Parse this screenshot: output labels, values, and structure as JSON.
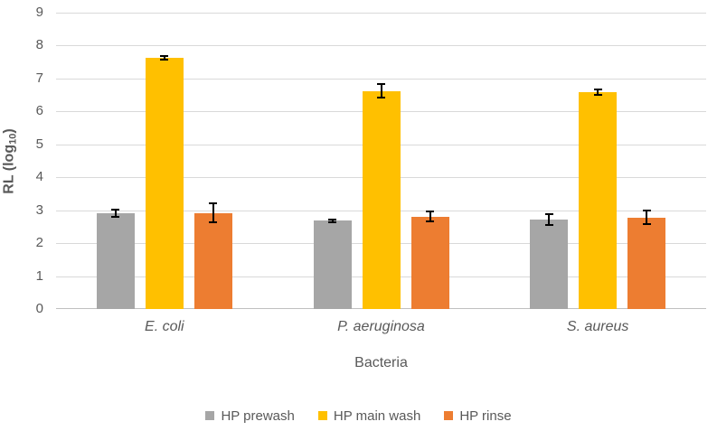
{
  "chart_data": {
    "type": "bar",
    "title": "",
    "xlabel": "Bacteria",
    "ylabel": "RL (log10)",
    "ylabel_parts": {
      "prefix": "RL (log",
      "subscript": "10",
      "suffix": ")"
    },
    "ylim": [
      0,
      9
    ],
    "yticks": [
      0,
      1,
      2,
      3,
      4,
      5,
      6,
      7,
      8,
      9
    ],
    "grid": true,
    "legend_position": "bottom",
    "categories": [
      "E. coli",
      "P. aeruginosa",
      "S. aureus"
    ],
    "series": [
      {
        "name": "HP prewash",
        "color": "#A6A6A6",
        "values": [
          2.91,
          2.68,
          2.71
        ],
        "errors": [
          0.12,
          0.05,
          0.17
        ]
      },
      {
        "name": "HP main wash",
        "color": "#FFC000",
        "values": [
          7.63,
          6.62,
          6.59
        ],
        "errors": [
          0.06,
          0.2,
          0.08
        ]
      },
      {
        "name": "HP rinse",
        "color": "#ED7D31",
        "values": [
          2.92,
          2.81,
          2.78
        ],
        "errors": [
          0.28,
          0.14,
          0.2
        ]
      }
    ],
    "colors": {
      "gridline": "#D9D9D9",
      "axis_line": "#BFBFBF",
      "text": "#595959",
      "error_bar": "#000000",
      "background": "#FFFFFF"
    }
  }
}
